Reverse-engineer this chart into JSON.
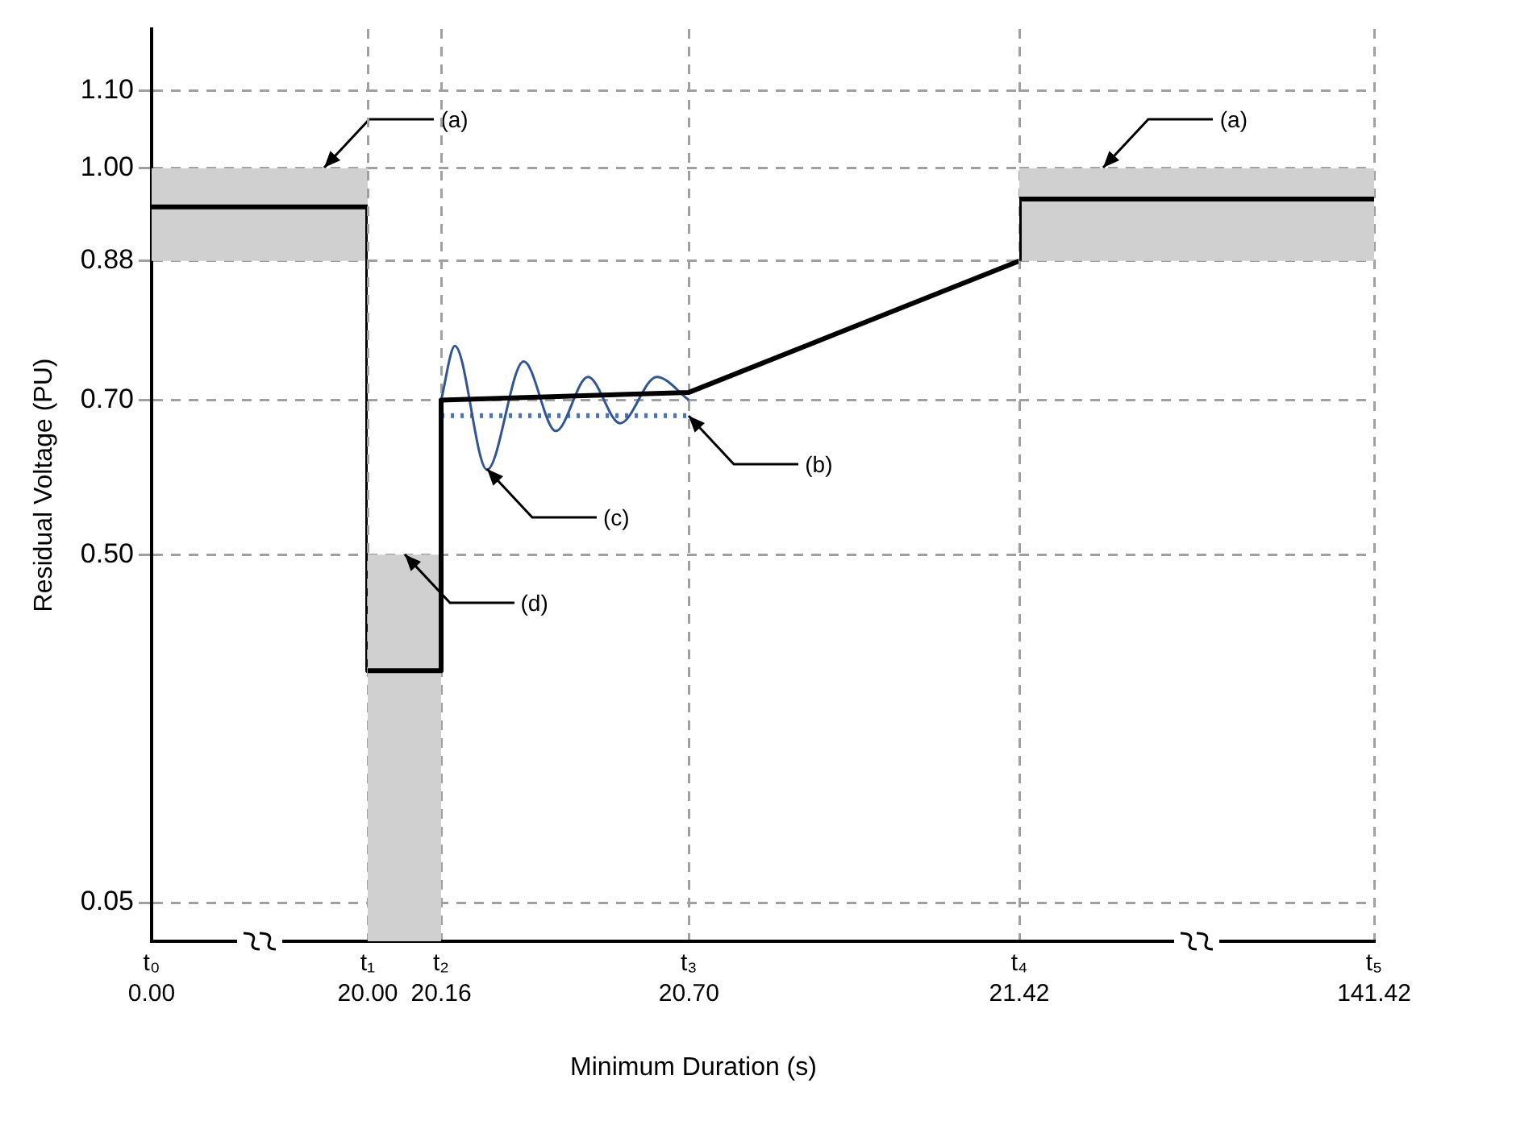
{
  "chart_data": [
    {
      "type": "line",
      "ylabel": "Residual Voltage (PU)",
      "xlim": [
        0,
        20
      ],
      "xticks": [
        {
          "value": 0,
          "label": "0.00"
        },
        {
          "value": 20,
          "label": "20.00"
        }
      ],
      "ylim": [
        0,
        1.18
      ],
      "yticks": [
        0.05,
        {
          "value": 0.5,
          "label": "0.50"
        },
        {
          "value": 0.7,
          "label": "0.70"
        },
        {
          "value": 0.88,
          "label": "0.88"
        },
        {
          "value": 1.0,
          "label": "1.00"
        },
        {
          "value": 1.1,
          "label": "1.10"
        }
      ],
      "grid": true,
      "bands": [
        {
          "axis": "y",
          "from": 0.88,
          "to": 1.0,
          "color": "#d0d0d0"
        }
      ],
      "series": [
        {
          "type": "line",
          "color": "#000000",
          "x": [
            0,
            20,
            20
          ],
          "values": [
            0.95,
            0.95,
            0.35
          ]
        }
      ],
      "annotations": [
        {
          "text": "(a)",
          "x": 16,
          "y": 1.0
        },
        "t₀",
        "t₁"
      ]
    },
    {
      "type": "line",
      "xlabel": "Minimum Duration (s)",
      "xlim": [
        20,
        21.42
      ],
      "xticks": [
        {
          "value": 20,
          "label": null
        },
        {
          "value": 20.16,
          "label": "20.16"
        },
        {
          "value": 20.7,
          "label": "20.70"
        }
      ],
      "ylim": [
        0,
        1.18
      ],
      "yticks": [
        0.05,
        0.5,
        0.7,
        0.88,
        1.0,
        1.1
      ],
      "tick_labels": "x",
      "grid": true,
      "series": [
        {
          "type": "area",
          "color": "#d0d0d0",
          "x": [
            20,
            20.16
          ],
          "values": [
            0.5,
            0.5
          ]
        },
        {
          "type": "line",
          "color": "#000000",
          "x": [
            20,
            20.16,
            20.16,
            20.7,
            21.42
          ],
          "values": [
            0.35,
            0.35,
            0.7,
            0.71,
            0.88
          ]
        },
        {
          "type": "line",
          "color": "#2f5597",
          "x": [
            20.16,
            20.19,
            20.26,
            20.34,
            20.41,
            20.48,
            20.55,
            20.63,
            20.7
          ],
          "values": [
            0.7,
            0.77,
            0.61,
            0.75,
            0.66,
            0.73,
            0.67,
            0.73,
            0.7
          ]
        },
        {
          "type": "line",
          "color": "#4472c4",
          "line_style": "dotted",
          "x": [
            20.16,
            20.7
          ],
          "values": [
            0.68,
            0.68
          ]
        }
      ],
      "annotations": [
        {
          "text": "(b)",
          "x": 20.7,
          "y": 0.68
        },
        {
          "text": "(c)",
          "x": 20.26,
          "y": 0.61
        },
        {
          "text": "(d)",
          "x": 20.08,
          "y": 0.5
        },
        "t₂",
        "t₃"
      ]
    },
    {
      "type": "line",
      "xlim": [
        21.42,
        141.42
      ],
      "xticks": [
        {
          "value": 21.42,
          "label": "21.42"
        },
        {
          "value": 141.42,
          "label": "141.42"
        }
      ],
      "ylim": [
        0,
        1.18
      ],
      "yticks": [
        0.05,
        0.5,
        0.7,
        0.88,
        1.0,
        1.1
      ],
      "tick_labels": "x",
      "grid": true,
      "bands": [
        {
          "axis": "y",
          "from": 0.88,
          "to": 1.0,
          "color": "#d0d0d0"
        }
      ],
      "series": [
        {
          "type": "line",
          "color": "#000000",
          "x": [
            21.42,
            21.42,
            141.42
          ],
          "values": [
            0.88,
            0.96,
            0.96
          ]
        }
      ],
      "annotations": [
        {
          "text": "(a)",
          "x": 50,
          "y": 1.0
        },
        "t₄",
        "t₅"
      ]
    }
  ]
}
